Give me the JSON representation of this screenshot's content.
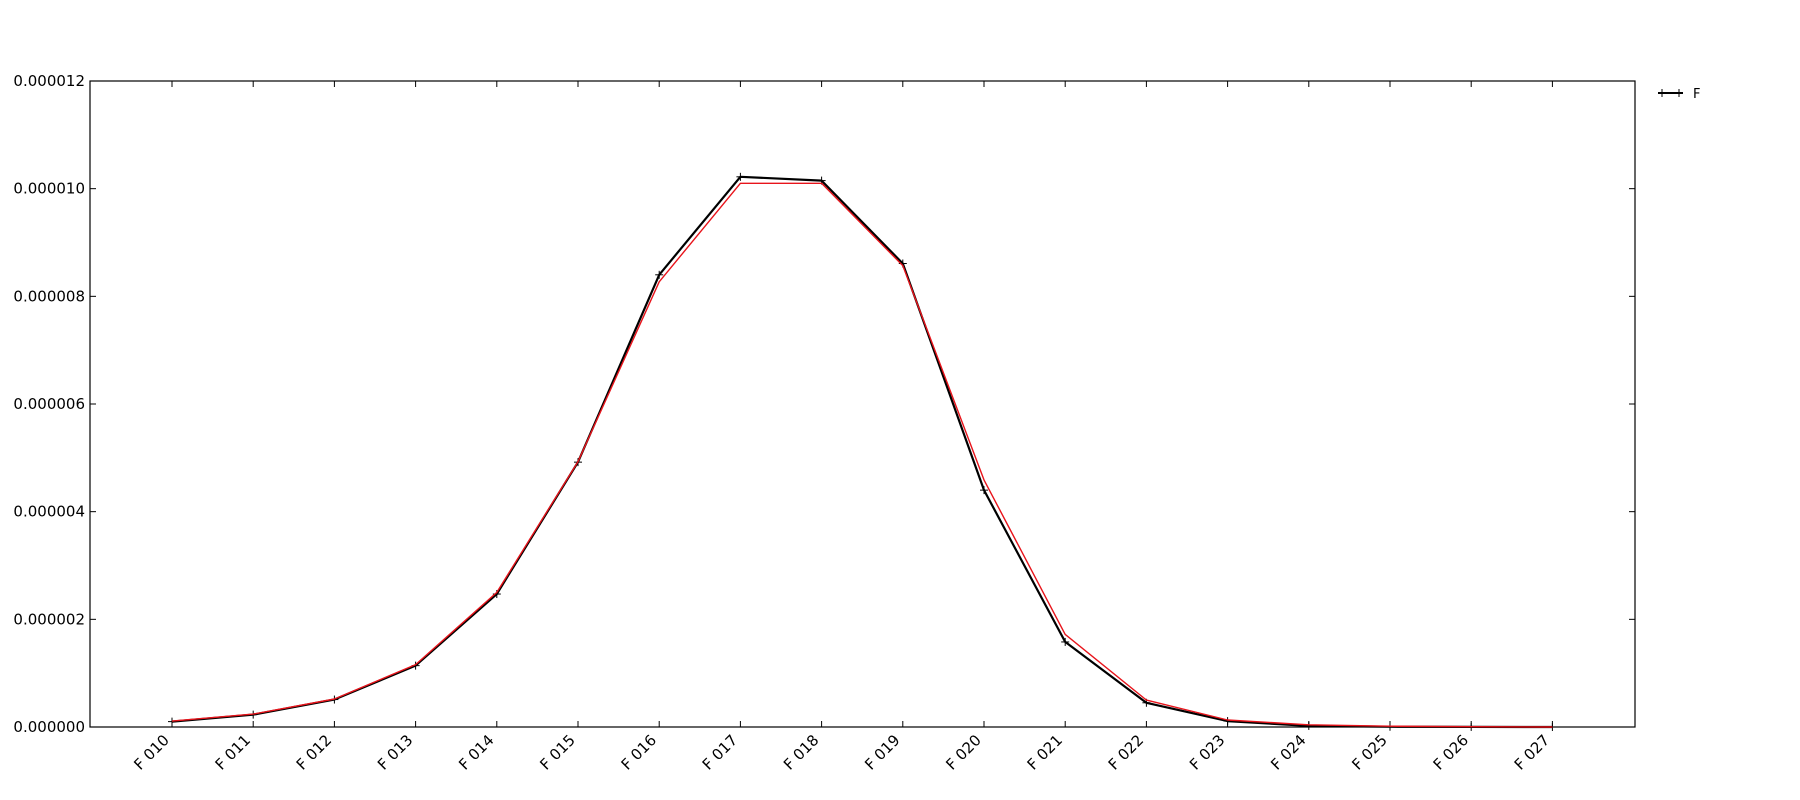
{
  "chart_data": {
    "type": "line",
    "title": "",
    "xlabel": "",
    "ylabel": "",
    "categories": [
      "F 010",
      "F 011",
      "F 012",
      "F 013",
      "F 014",
      "F 015",
      "F 016",
      "F 017",
      "F 018",
      "F 019",
      "F 020",
      "F 021",
      "F 022",
      "F 023",
      "F 024",
      "F 025",
      "F 026",
      "F 027"
    ],
    "y_ticks": [
      "0.000000",
      "0.000002",
      "0.000004",
      "0.000006",
      "0.000008",
      "0.000010",
      "0.000012"
    ],
    "ylim": [
      0,
      1.2e-05
    ],
    "grid": false,
    "legend_position": "outside-top-right",
    "series": [
      {
        "name": "F",
        "color": "#000000",
        "marker": "plus",
        "values": [
          1e-07,
          2.3e-07,
          5.1e-07,
          1.14e-06,
          2.47e-06,
          4.92e-06,
          8.4e-06,
          1.022e-05,
          1.015e-05,
          8.61e-06,
          4.4e-06,
          1.58e-06,
          4.5e-07,
          1.1e-07,
          2e-08,
          5e-09,
          1e-09,
          0.0
        ]
      },
      {
        "color": "#e8141b",
        "marker": "none",
        "values": [
          1.1e-07,
          2.4e-07,
          5.2e-07,
          1.16e-06,
          2.5e-06,
          4.93e-06,
          8.27e-06,
          1.01e-05,
          1.01e-05,
          8.57e-06,
          4.59e-06,
          1.72e-06,
          5e-07,
          1.3e-07,
          4e-08,
          1.5e-08,
          5e-09,
          0.0
        ]
      }
    ]
  }
}
